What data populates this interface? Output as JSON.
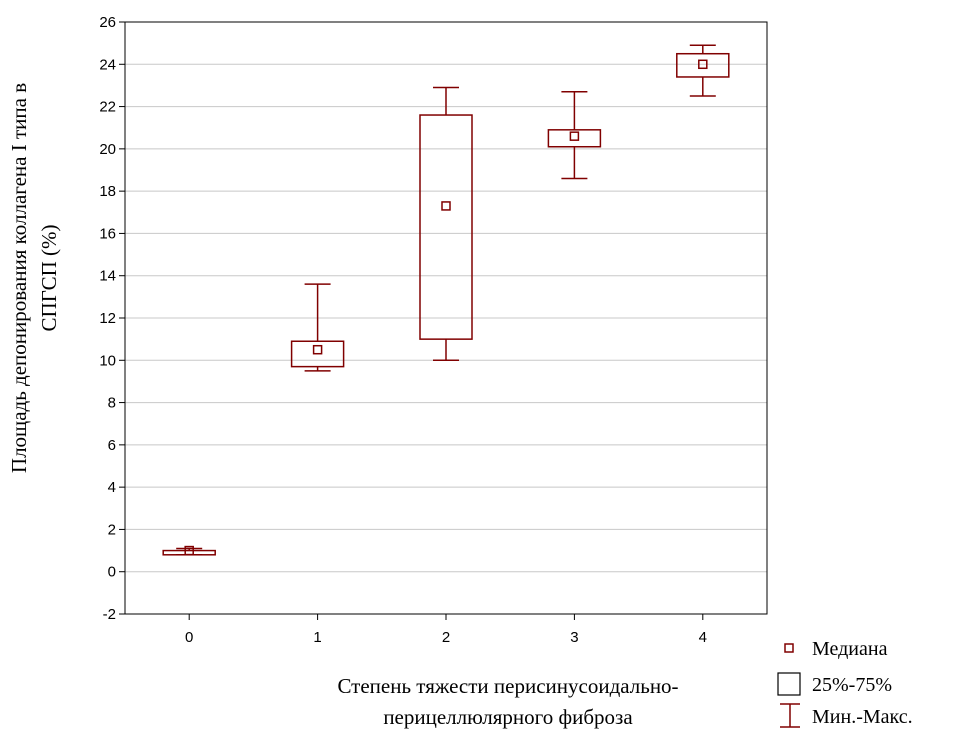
{
  "chart_data": {
    "type": "boxplot",
    "xlabel_lines": [
      "Степень тяжести перисинусоидально-",
      "перицеллюлярного фиброза"
    ],
    "ylabel_lines": [
      "Площадь депонирования коллагена I типа в",
      "СПГСП (%)"
    ],
    "ylim": [
      -2,
      26
    ],
    "yticks": [
      -2,
      0,
      2,
      4,
      6,
      8,
      10,
      12,
      14,
      16,
      18,
      20,
      22,
      24,
      26
    ],
    "categories": [
      "0",
      "1",
      "2",
      "3",
      "4"
    ],
    "grid": true,
    "boxes": [
      {
        "category": "0",
        "min": 0.8,
        "q1": 0.8,
        "median": 1.0,
        "q3": 1.0,
        "max": 1.1
      },
      {
        "category": "1",
        "min": 9.5,
        "q1": 9.7,
        "median": 10.5,
        "q3": 10.9,
        "max": 13.6
      },
      {
        "category": "2",
        "min": 10.0,
        "q1": 11.0,
        "median": 17.3,
        "q3": 21.6,
        "max": 22.9
      },
      {
        "category": "3",
        "min": 18.6,
        "q1": 20.1,
        "median": 20.6,
        "q3": 20.9,
        "max": 22.7
      },
      {
        "category": "4",
        "min": 22.5,
        "q1": 23.4,
        "median": 24.0,
        "q3": 24.5,
        "max": 24.9
      }
    ],
    "legend": {
      "position": "bottom-right",
      "items": [
        {
          "symbol": "median",
          "label": "Медиана"
        },
        {
          "symbol": "box",
          "label": "25%-75%"
        },
        {
          "symbol": "whisker",
          "label": "Мин.-Макс."
        }
      ]
    },
    "colors": {
      "series": "#800000",
      "grid": "#c8c8c8",
      "axis": "#000000"
    }
  }
}
